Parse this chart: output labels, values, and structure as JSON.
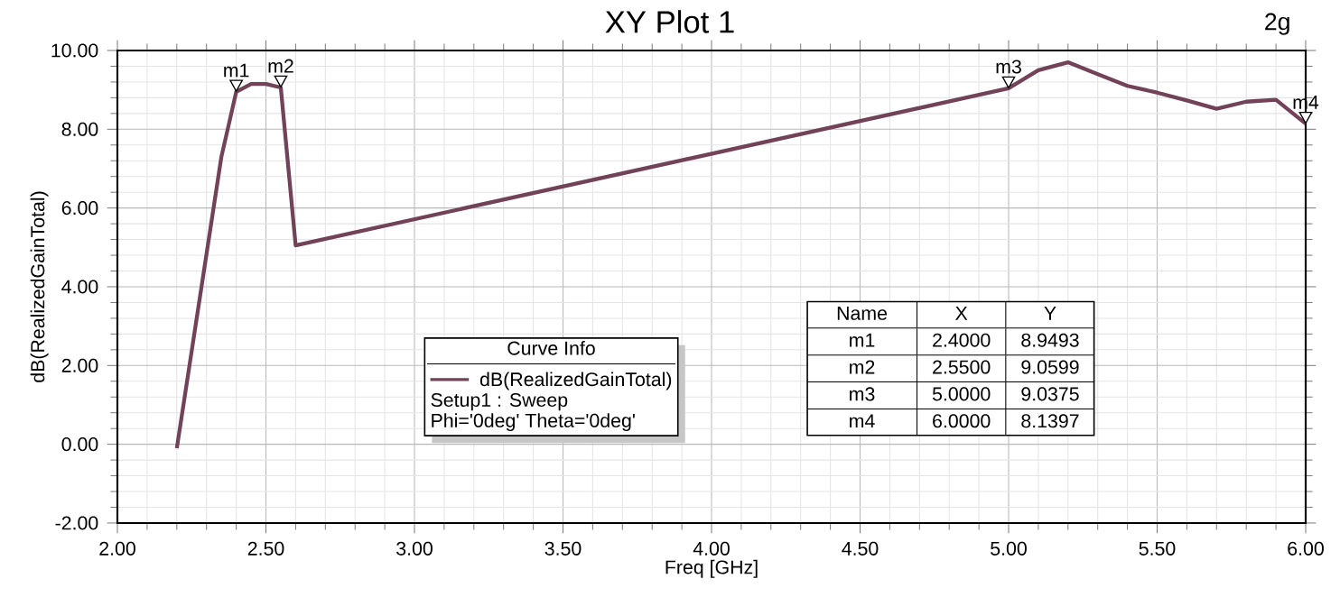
{
  "chart_data": {
    "type": "line",
    "title": "XY Plot 1",
    "xlabel": "Freq [GHz]",
    "ylabel": "dB(RealizedGainTotal)",
    "legend_title": "Curve Info",
    "x": [
      2.2,
      2.35,
      2.4,
      2.45,
      2.5,
      2.55,
      2.6,
      5.0,
      5.1,
      5.2,
      5.3,
      5.4,
      5.5,
      5.6,
      5.7,
      5.8,
      5.9,
      6.0
    ],
    "series": [
      {
        "name": "dB(RealizedGainTotal)",
        "color": "#714258",
        "values": [
          -0.1,
          7.3,
          8.95,
          9.15,
          9.15,
          9.06,
          5.05,
          9.04,
          9.5,
          9.7,
          9.4,
          9.1,
          8.93,
          8.73,
          8.52,
          8.7,
          8.75,
          8.14
        ]
      }
    ],
    "xlim": [
      2.0,
      6.0
    ],
    "ylim": [
      -2.0,
      10.0
    ],
    "xticks": [
      {
        "value": 2.0,
        "label": "2.00"
      },
      {
        "value": 2.5,
        "label": "2.50"
      },
      {
        "value": 3.0,
        "label": "3.00"
      },
      {
        "value": 3.5,
        "label": "3.50"
      },
      {
        "value": 4.0,
        "label": "4.00"
      },
      {
        "value": 4.5,
        "label": "4.50"
      },
      {
        "value": 5.0,
        "label": "5.00"
      },
      {
        "value": 5.5,
        "label": "5.50"
      },
      {
        "value": 6.0,
        "label": "6.00"
      }
    ],
    "yticks": [
      {
        "value": -2.0,
        "label": "-2.00"
      },
      {
        "value": 0.0,
        "label": "0.00"
      },
      {
        "value": 2.0,
        "label": "2.00"
      },
      {
        "value": 4.0,
        "label": "4.00"
      },
      {
        "value": 6.0,
        "label": "6.00"
      },
      {
        "value": 8.0,
        "label": "8.00"
      },
      {
        "value": 10.0,
        "label": "10.00"
      }
    ],
    "grid": true,
    "legend": "bottom",
    "marker": "none",
    "line_style": "solid",
    "annotations": [
      {
        "text": "m1",
        "x": 2.4,
        "y": 8.9493
      },
      {
        "text": "m2",
        "x": 2.55,
        "y": 9.0599
      },
      {
        "text": "m3",
        "x": 5.0,
        "y": 9.0375
      },
      {
        "text": "m4",
        "x": 6.0,
        "y": 8.1397
      },
      "2g",
      "Setup1 : Sweep",
      "Phi='0deg' Theta='0deg'",
      "Name",
      "X",
      "Y",
      "m1",
      "2.4000",
      "8.9493",
      "m2",
      "2.5500",
      "9.0599",
      "m3",
      "5.0000",
      "9.0375",
      "m4",
      "6.0000",
      "8.1397"
    ]
  }
}
